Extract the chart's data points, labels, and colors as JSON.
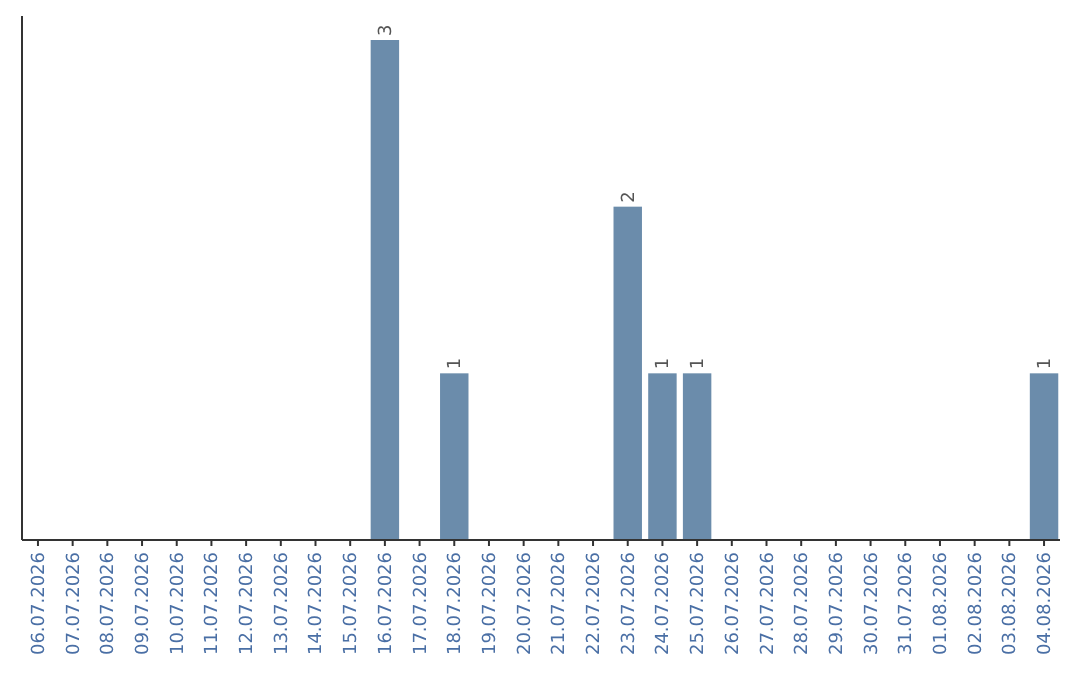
{
  "chart_data": {
    "type": "bar",
    "categories": [
      "06.07.2026",
      "07.07.2026",
      "08.07.2026",
      "09.07.2026",
      "10.07.2026",
      "11.07.2026",
      "12.07.2026",
      "13.07.2026",
      "14.07.2026",
      "15.07.2026",
      "16.07.2026",
      "17.07.2026",
      "18.07.2026",
      "19.07.2026",
      "20.07.2026",
      "21.07.2026",
      "22.07.2026",
      "23.07.2026",
      "24.07.2026",
      "25.07.2026",
      "26.07.2026",
      "27.07.2026",
      "28.07.2026",
      "29.07.2026",
      "30.07.2026",
      "31.07.2026",
      "01.08.2026",
      "02.08.2026",
      "03.08.2026",
      "04.08.2026"
    ],
    "values": [
      0,
      0,
      0,
      0,
      0,
      0,
      0,
      0,
      0,
      0,
      3,
      0,
      1,
      0,
      0,
      0,
      0,
      2,
      1,
      1,
      0,
      0,
      0,
      0,
      0,
      0,
      0,
      0,
      0,
      1
    ],
    "value_labels": [
      null,
      null,
      null,
      null,
      null,
      null,
      null,
      null,
      null,
      null,
      "3",
      null,
      "1",
      null,
      null,
      null,
      null,
      "2",
      "1",
      "1",
      null,
      null,
      null,
      null,
      null,
      null,
      null,
      null,
      null,
      "1"
    ],
    "color": "#6b8cab"
  }
}
